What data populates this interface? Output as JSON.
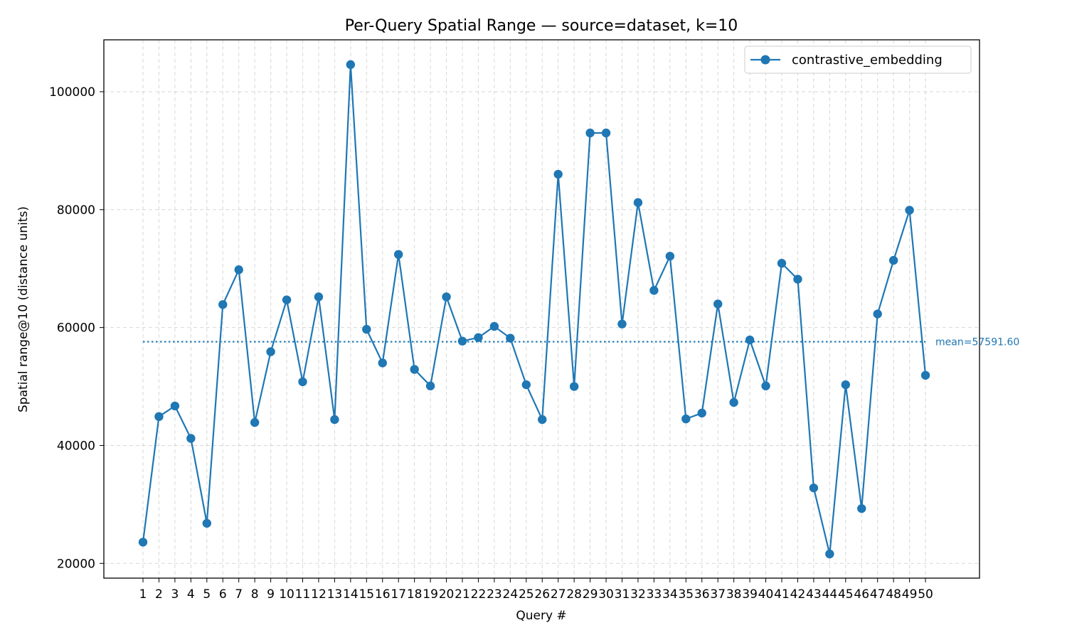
{
  "chart_data": {
    "type": "line",
    "title": "Per-Query Spatial Range — source=dataset, k=10",
    "xlabel": "Query #",
    "ylabel": "Spatial range@10 (distance units)",
    "ylim": [
      17500,
      108800
    ],
    "grid": true,
    "legend_position": "top-right",
    "categories": [
      "1",
      "2",
      "3",
      "4",
      "5",
      "6",
      "7",
      "8",
      "9",
      "10",
      "11",
      "12",
      "13",
      "14",
      "15",
      "16",
      "17",
      "18",
      "19",
      "20",
      "21",
      "22",
      "23",
      "24",
      "25",
      "26",
      "27",
      "28",
      "29",
      "30",
      "31",
      "32",
      "33",
      "34",
      "35",
      "36",
      "37",
      "38",
      "39",
      "40",
      "41",
      "42",
      "43",
      "44",
      "45",
      "46",
      "47",
      "48",
      "49",
      "50"
    ],
    "y_ticks": [
      20000,
      40000,
      60000,
      80000,
      100000
    ],
    "y_tick_labels": [
      "20000",
      "40000",
      "60000",
      "80000",
      "100000"
    ],
    "series": [
      {
        "name": "contrastive_embedding",
        "color": "#1f77b4",
        "values": [
          23600,
          44900,
          46700,
          41200,
          26800,
          63900,
          69800,
          43900,
          55900,
          64700,
          50800,
          65200,
          44400,
          104600,
          59700,
          54000,
          72400,
          52900,
          50100,
          65200,
          57700,
          58300,
          60200,
          58200,
          50300,
          44400,
          86000,
          50000,
          93000,
          93000,
          60600,
          81200,
          66300,
          72100,
          44500,
          45500,
          64000,
          47300,
          57900,
          50100,
          70900,
          68200,
          32800,
          21600,
          50300,
          29300,
          62300,
          71400,
          79900,
          51900
        ]
      }
    ],
    "mean": {
      "value": 57591.6,
      "label": "mean=57591.60"
    }
  }
}
